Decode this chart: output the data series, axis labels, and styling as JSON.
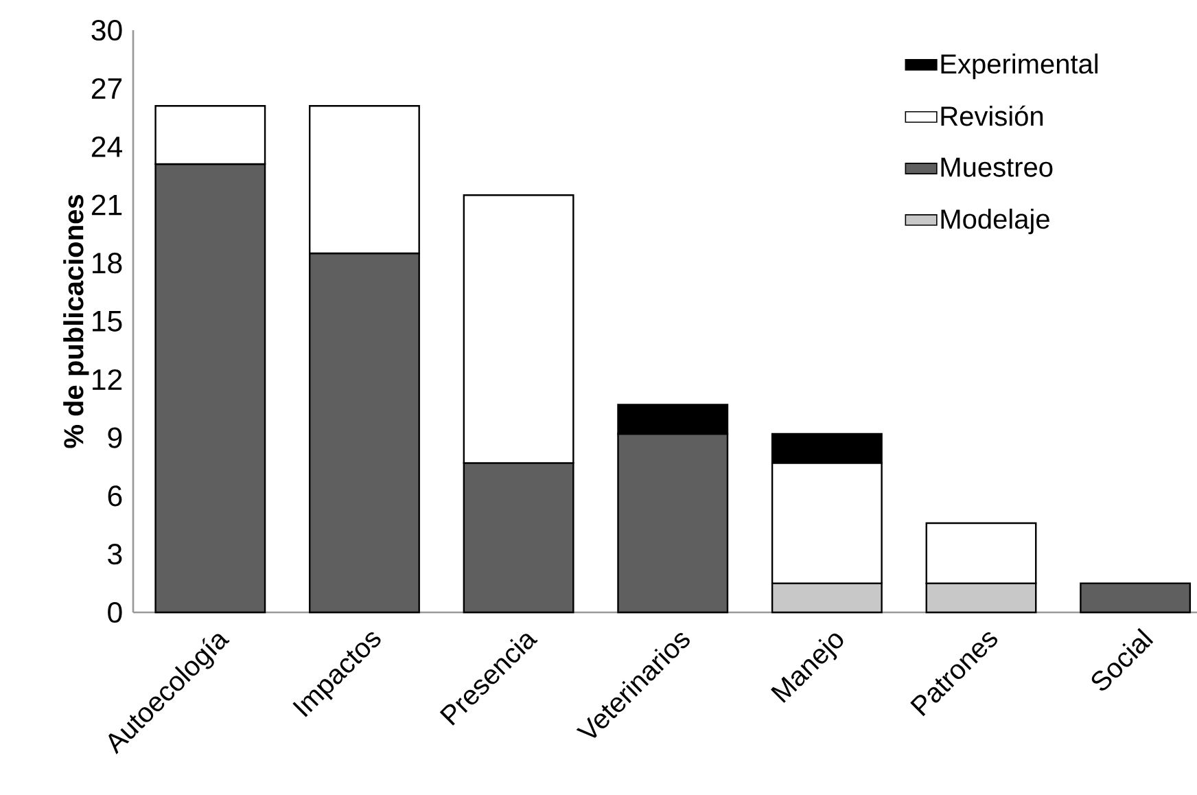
{
  "chart_data": {
    "type": "bar",
    "stacked": true,
    "ylabel": "% de publicaciones",
    "categories": [
      "Autoecología",
      "Impactos",
      "Presencia",
      "Veterinarios",
      "Manejo",
      "Patrones",
      "Social"
    ],
    "series": [
      {
        "name": "Modelaje",
        "color": "#c8c8c8",
        "values": [
          null,
          null,
          null,
          null,
          1.5,
          1.5,
          null
        ]
      },
      {
        "name": "Muestreo",
        "color": "#5f5f5f",
        "values": [
          23.1,
          18.5,
          7.7,
          9.2,
          null,
          null,
          1.5
        ]
      },
      {
        "name": "Revisión",
        "color": "#ffffff",
        "values": [
          3.0,
          7.6,
          13.8,
          null,
          6.2,
          3.1,
          null
        ]
      },
      {
        "name": "Experimental",
        "color": "#000000",
        "values": [
          null,
          null,
          null,
          1.5,
          1.5,
          null,
          null
        ]
      }
    ],
    "ylim": [
      0,
      30
    ],
    "yticks": [
      0,
      3,
      6,
      9,
      12,
      15,
      18,
      21,
      24,
      27,
      30
    ],
    "legend": "top right"
  }
}
